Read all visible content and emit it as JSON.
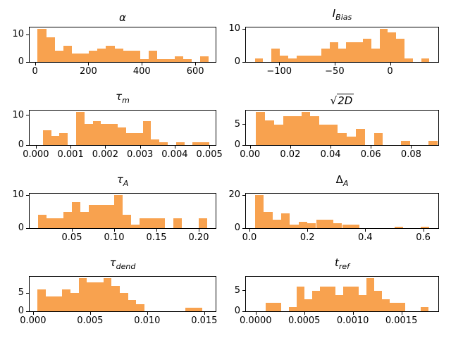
{
  "figure": {
    "background": "#ffffff",
    "bar_color": "#f8a24f",
    "axis_color": "#000000",
    "text_color": "#000000"
  },
  "chart_data": [
    {
      "id": "alpha",
      "type": "bar",
      "title": {
        "base": "α",
        "sub": "",
        "sqrt": false,
        "italic": true
      },
      "bin_start": 10,
      "bin_width": 32,
      "values": [
        12,
        9,
        4,
        6,
        3,
        3,
        4,
        5,
        6,
        5,
        4,
        4,
        1,
        4,
        1,
        1,
        2,
        1,
        0,
        2
      ],
      "xlim": [
        -20,
        676
      ],
      "ylim": [
        0,
        12.6
      ],
      "xticks": [
        0,
        200,
        400,
        600
      ],
      "xtick_labels": [
        "0",
        "200",
        "400",
        "600"
      ],
      "yticks": [
        0,
        10
      ],
      "ytick_labels": [
        "0",
        "10"
      ]
    },
    {
      "id": "i_bias",
      "type": "bar",
      "title": {
        "base": "I",
        "sub": "Bias",
        "sqrt": false,
        "italic": true
      },
      "bin_start": -122,
      "bin_width": 7.5,
      "values": [
        1,
        0,
        4,
        2,
        1,
        2,
        2,
        2,
        4,
        6,
        4,
        6,
        6,
        7,
        4,
        10,
        9,
        7,
        1,
        0,
        1
      ],
      "xlim": [
        -130,
        43.5
      ],
      "ylim": [
        0,
        10.5
      ],
      "xticks": [
        -100,
        -50,
        0
      ],
      "xtick_labels": [
        "−100",
        "−50",
        "0"
      ],
      "yticks": [
        0,
        10
      ],
      "ytick_labels": [
        "0",
        "10"
      ]
    },
    {
      "id": "tau_m",
      "type": "bar",
      "title": {
        "base": "τ",
        "sub": "m",
        "sqrt": false,
        "italic": true
      },
      "bin_start": 0.0002,
      "bin_width": 0.00024,
      "values": [
        5,
        3,
        4,
        0,
        11,
        7,
        8,
        7,
        7,
        6,
        4,
        4,
        8,
        2,
        1,
        0,
        1,
        0,
        1,
        1
      ],
      "xlim": [
        -0.00018,
        0.00518
      ],
      "ylim": [
        0,
        11.55
      ],
      "xticks": [
        0,
        0.001,
        0.002,
        0.003,
        0.004,
        0.005
      ],
      "xtick_labels": [
        "0.000",
        "0.001",
        "0.002",
        "0.003",
        "0.004",
        "0.005"
      ],
      "yticks": [
        0,
        10
      ],
      "ytick_labels": [
        "0",
        "10"
      ]
    },
    {
      "id": "sqrt_2d",
      "type": "bar",
      "title": {
        "base": "2D",
        "sub": "",
        "sqrt": true,
        "italic": true
      },
      "bin_start": 0.003,
      "bin_width": 0.0045,
      "values": [
        8,
        6,
        5,
        7,
        7,
        8,
        7,
        5,
        5,
        3,
        2,
        4,
        0,
        3,
        0,
        0,
        1,
        0,
        0,
        1
      ],
      "xlim": [
        -0.002,
        0.0935
      ],
      "ylim": [
        0,
        8.4
      ],
      "xticks": [
        0,
        0.02,
        0.04,
        0.06,
        0.08
      ],
      "xtick_labels": [
        "0.00",
        "0.02",
        "0.04",
        "0.06",
        "0.08"
      ],
      "yticks": [
        0,
        5
      ],
      "ytick_labels": [
        "0",
        "5"
      ]
    },
    {
      "id": "tau_a",
      "type": "bar",
      "title": {
        "base": "τ",
        "sub": "A",
        "sqrt": false,
        "italic": true
      },
      "bin_start": 0.01,
      "bin_width": 0.01,
      "values": [
        4,
        3,
        3,
        5,
        8,
        5,
        7,
        7,
        7,
        10,
        4,
        1,
        3,
        3,
        3,
        0,
        3,
        0,
        0,
        3
      ],
      "xlim": [
        0,
        0.22
      ],
      "ylim": [
        0,
        10.5
      ],
      "xticks": [
        0.05,
        0.1,
        0.15,
        0.2
      ],
      "xtick_labels": [
        "0.05",
        "0.10",
        "0.15",
        "0.20"
      ],
      "yticks": [
        0,
        10
      ],
      "ytick_labels": [
        "0",
        "10"
      ]
    },
    {
      "id": "delta_a",
      "type": "bar",
      "title": {
        "base": "Δ",
        "sub": "A",
        "sqrt": false,
        "italic": false
      },
      "bin_start": 0.02,
      "bin_width": 0.03,
      "values": [
        20,
        10,
        5,
        9,
        2,
        4,
        3,
        5,
        5,
        3,
        2,
        2,
        0,
        0,
        0,
        0,
        1,
        0,
        0,
        1
      ],
      "xlim": [
        -0.012,
        0.652
      ],
      "ylim": [
        0,
        21
      ],
      "xticks": [
        0,
        0.2,
        0.4,
        0.6
      ],
      "xtick_labels": [
        "0.0",
        "0.2",
        "0.4",
        "0.6"
      ],
      "yticks": [
        0,
        20
      ],
      "ytick_labels": [
        "0",
        "20"
      ]
    },
    {
      "id": "tau_dend",
      "type": "bar",
      "title": {
        "base": "τ",
        "sub": "dend",
        "sqrt": false,
        "italic": true
      },
      "bin_start": 0.0004,
      "bin_width": 0.00072,
      "values": [
        6,
        4,
        4,
        6,
        5,
        9,
        8,
        8,
        9,
        7,
        5,
        3,
        2,
        0,
        0,
        0,
        0,
        0,
        1,
        1
      ],
      "xlim": [
        -0.0003,
        0.016
      ],
      "ylim": [
        0,
        9.45
      ],
      "xticks": [
        0,
        0.005,
        0.01,
        0.015
      ],
      "xtick_labels": [
        "0.000",
        "0.005",
        "0.010",
        "0.015"
      ],
      "yticks": [
        0,
        5
      ],
      "ytick_labels": [
        "0",
        "5"
      ]
    },
    {
      "id": "t_ref",
      "type": "bar",
      "title": {
        "base": "t",
        "sub": "ref",
        "sqrt": false,
        "italic": true
      },
      "bin_start": 0.0001,
      "bin_width": 8e-05,
      "values": [
        2,
        2,
        0,
        1,
        6,
        3,
        5,
        6,
        6,
        4,
        6,
        6,
        4,
        8,
        5,
        3,
        2,
        2,
        0,
        0,
        1
      ],
      "xlim": [
        -0.0001,
        0.00188
      ],
      "ylim": [
        0,
        8.4
      ],
      "xticks": [
        0,
        0.0005,
        0.001,
        0.0015
      ],
      "xtick_labels": [
        "0.0000",
        "0.0005",
        "0.0010",
        "0.0015"
      ],
      "yticks": [
        0,
        5
      ],
      "ytick_labels": [
        "0",
        "5"
      ]
    }
  ]
}
